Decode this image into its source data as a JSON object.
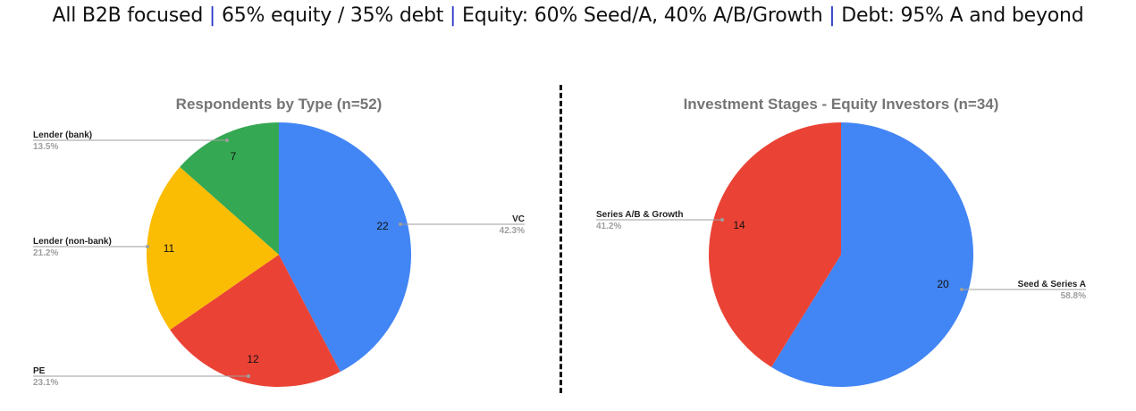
{
  "header": {
    "part1": "All B2B focused",
    "sep": "|",
    "part2": "65% equity / 35% debt",
    "part3": "Equity: 60% Seed/A, 40% A/B/Growth",
    "part4": "Debt: 95% A and beyond"
  },
  "colors": {
    "separator": "#2a38c9",
    "title": "#757575",
    "divider": "#111111"
  },
  "chart_data": [
    {
      "type": "pie",
      "title": "Respondents by Type (n=52)",
      "slices": [
        {
          "name": "VC",
          "value": 22,
          "percent": "42.3%",
          "color": "#4285f4"
        },
        {
          "name": "PE",
          "value": 12,
          "percent": "23.1%",
          "color": "#ea4335"
        },
        {
          "name": "Lender (non-bank)",
          "value": 11,
          "percent": "21.2%",
          "color": "#fbbc04"
        },
        {
          "name": "Lender (bank)",
          "value": 7,
          "percent": "13.5%",
          "color": "#34a853"
        }
      ],
      "start_angle_deg": 0,
      "direction": "clockwise",
      "legend": "leader-labels"
    },
    {
      "type": "pie",
      "title": "Investment Stages - Equity Investors (n=34)",
      "slices": [
        {
          "name": "Seed & Series A",
          "value": 20,
          "percent": "58.8%",
          "color": "#4285f4"
        },
        {
          "name": "Series A/B & Growth",
          "value": 14,
          "percent": "41.2%",
          "color": "#ea4335"
        }
      ],
      "start_angle_deg": 0,
      "direction": "clockwise",
      "legend": "leader-labels"
    }
  ]
}
